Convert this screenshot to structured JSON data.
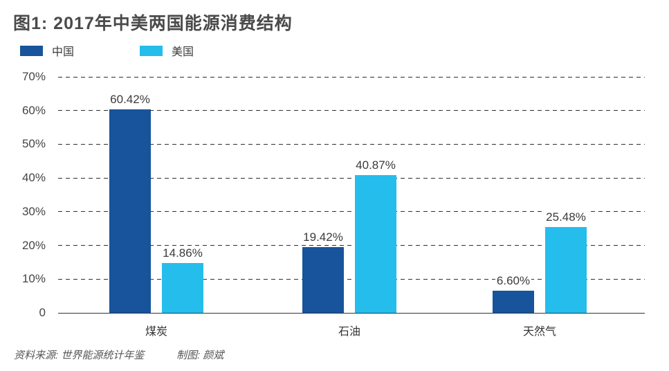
{
  "title": "图1: 2017年中美两国能源消费结构",
  "chart_data": {
    "type": "bar",
    "title": "图1: 2017年中美两国能源消费结构",
    "categories": [
      "煤炭",
      "石油",
      "天然气"
    ],
    "series": [
      {
        "key": "china",
        "name": "中国",
        "color": "#17549B",
        "values": [
          60.42,
          19.42,
          6.6
        ],
        "value_labels": [
          "60.42%",
          "19.42%",
          "6.60%"
        ]
      },
      {
        "key": "usa",
        "name": "美国",
        "color": "#25BDEC",
        "values": [
          14.86,
          40.87,
          25.48
        ],
        "value_labels": [
          "14.86%",
          "40.87%",
          "25.48%"
        ]
      }
    ],
    "ylim": [
      0,
      70
    ],
    "ytick_labels": [
      "0",
      "10%",
      "20%",
      "30%",
      "40%",
      "50%",
      "60%",
      "70%"
    ],
    "grid": "horizontal-dashed",
    "legend_position": "top-left"
  },
  "footer": {
    "source": "资料来源: 世界能源统计年鉴",
    "credit": "制图: 颜斌"
  },
  "colors": {
    "china": "#17549B",
    "usa": "#25BDEC",
    "grid": "#2E2E2E",
    "title_text": "#4A4A4A",
    "label_text": "#3A3A3A"
  }
}
